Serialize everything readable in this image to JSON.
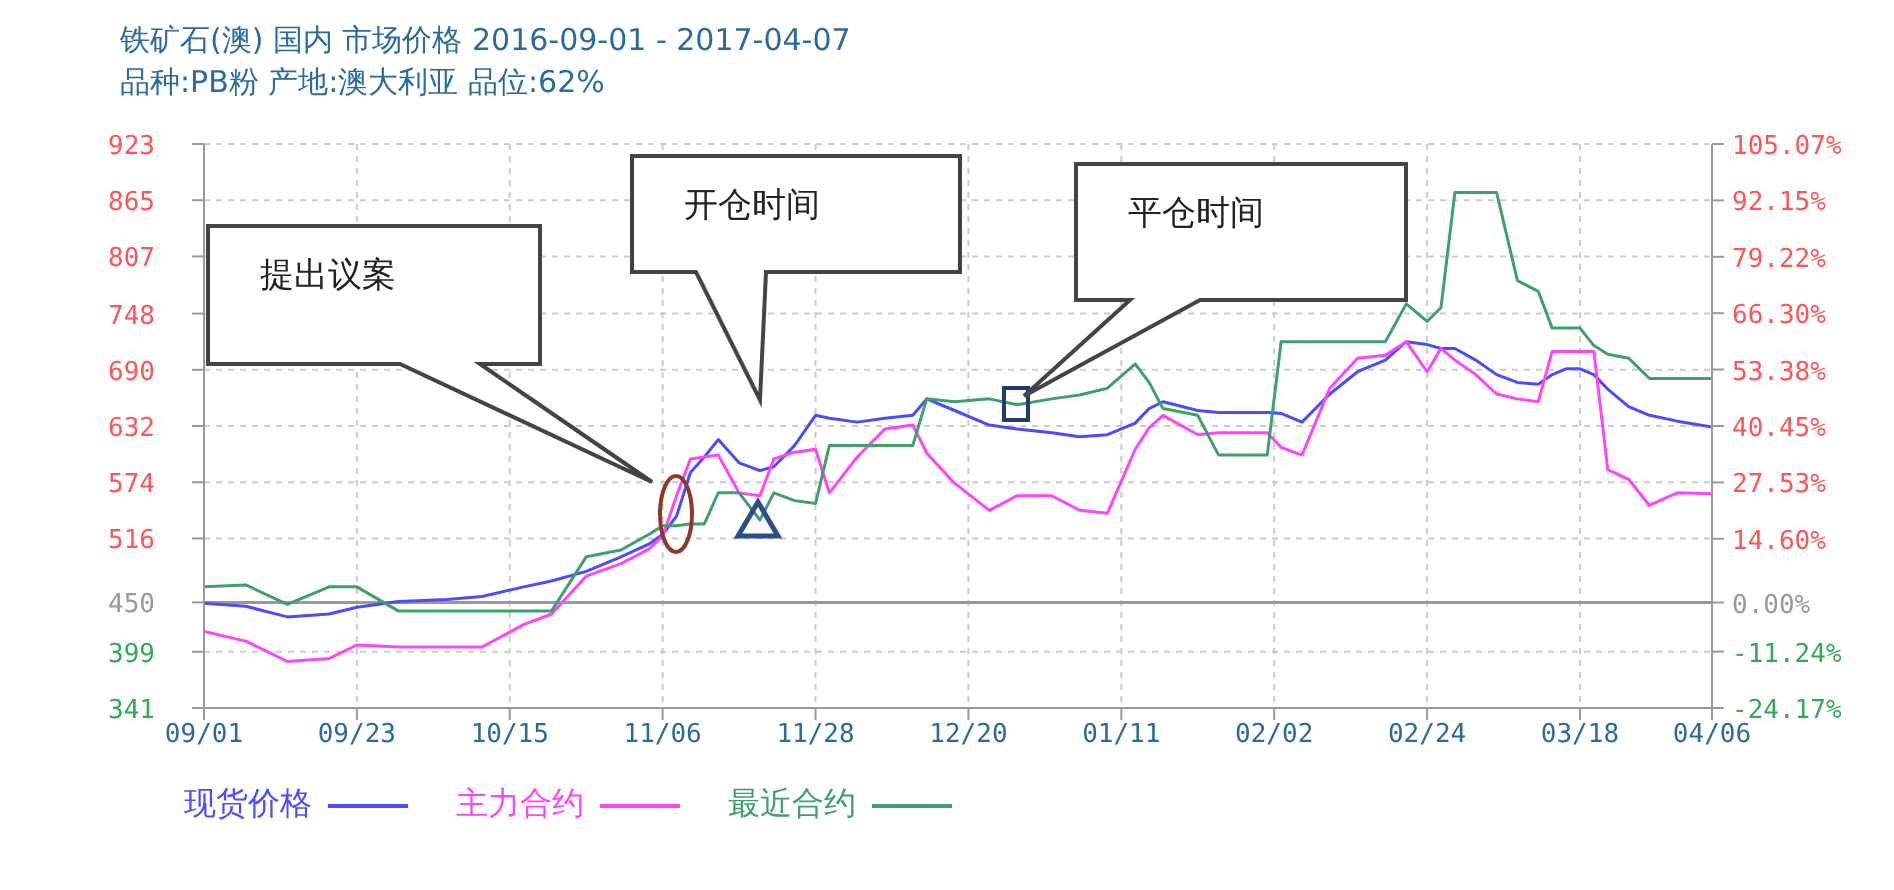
{
  "chart_data": {
    "type": "line",
    "title": "铁矿石(澳) 国内 市场价格 2016-09-01 - 2017-04-07",
    "subtitle": "品种:PB粉 产地:澳大利亚 品位:62%",
    "x": [
      "2016-09-01",
      "2016-09-07",
      "2016-09-13",
      "2016-09-19",
      "2016-09-23",
      "2016-09-29",
      "2016-10-06",
      "2016-10-11",
      "2016-10-17",
      "2016-10-21",
      "2016-10-26",
      "2016-10-31",
      "2016-11-04",
      "2016-11-06",
      "2016-11-08",
      "2016-11-10",
      "2016-11-12",
      "2016-11-14",
      "2016-11-17",
      "2016-11-20",
      "2016-11-22",
      "2016-11-25",
      "2016-11-28",
      "2016-11-30",
      "2016-12-04",
      "2016-12-08",
      "2016-12-12",
      "2016-12-14",
      "2016-12-18",
      "2016-12-23",
      "2016-12-27",
      "2017-01-01",
      "2017-01-05",
      "2017-01-09",
      "2017-01-13",
      "2017-01-15",
      "2017-01-17",
      "2017-01-22",
      "2017-01-25",
      "2017-01-29",
      "2017-02-01",
      "2017-02-03",
      "2017-02-06",
      "2017-02-10",
      "2017-02-14",
      "2017-02-18",
      "2017-02-21",
      "2017-02-24",
      "2017-02-26",
      "2017-02-28",
      "2017-03-03",
      "2017-03-06",
      "2017-03-09",
      "2017-03-12",
      "2017-03-14",
      "2017-03-16",
      "2017-03-18",
      "2017-03-20",
      "2017-03-22",
      "2017-03-25",
      "2017-03-28",
      "2017-04-01",
      "2017-04-06"
    ],
    "series": [
      {
        "name": "现货价格",
        "color": "#4b4bff",
        "values": [
          449,
          446,
          435,
          438,
          445,
          451,
          453,
          456,
          466,
          472,
          482,
          497,
          510,
          520,
          539,
          584,
          600,
          618,
          594,
          586,
          590,
          612,
          643,
          640,
          636,
          640,
          643,
          660,
          648,
          633,
          629,
          625,
          621,
          623,
          635,
          650,
          657,
          648,
          646,
          646,
          646,
          645,
          636,
          665,
          688,
          700,
          719,
          716,
          712,
          712,
          700,
          685,
          677,
          675,
          685,
          691,
          691,
          685,
          670,
          652,
          643,
          637,
          631
        ]
      },
      {
        "name": "主力合约",
        "color": "#ff44ff",
        "values": [
          420,
          410,
          389,
          392,
          406,
          404,
          404,
          404,
          427,
          438,
          477,
          490,
          505,
          518,
          560,
          598,
          600,
          602,
          563,
          560,
          598,
          605,
          608,
          563,
          600,
          629,
          633,
          604,
          573,
          545,
          560,
          560,
          545,
          542,
          608,
          630,
          643,
          623,
          625,
          625,
          625,
          610,
          602,
          671,
          702,
          705,
          719,
          688,
          712,
          700,
          685,
          665,
          660,
          657,
          709,
          709,
          709,
          709,
          587,
          577,
          550,
          563,
          562
        ]
      },
      {
        "name": "最近合约",
        "color": "#3f9f6f",
        "values": [
          466,
          468,
          448,
          466,
          466,
          441,
          441,
          441,
          441,
          441,
          497,
          504,
          520,
          529,
          529,
          531,
          531,
          563,
          563,
          535,
          563,
          555,
          552,
          612,
          612,
          612,
          612,
          660,
          657,
          660,
          654,
          660,
          664,
          671,
          696,
          677,
          650,
          643,
          602,
          602,
          602,
          719,
          719,
          719,
          719,
          719,
          758,
          740,
          754,
          873,
          873,
          873,
          782,
          771,
          733,
          733,
          733,
          715,
          706,
          702,
          681,
          681,
          681
        ]
      }
    ],
    "xlim": [
      "2016-09-01",
      "2017-04-06"
    ],
    "xticks": [
      {
        "value": "2016-09-01",
        "label": "09/01"
      },
      {
        "value": "2016-09-23",
        "label": "09/23"
      },
      {
        "value": "2016-10-15",
        "label": "10/15"
      },
      {
        "value": "2016-11-06",
        "label": "11/06"
      },
      {
        "value": "2016-11-28",
        "label": "11/28"
      },
      {
        "value": "2016-12-20",
        "label": "12/20"
      },
      {
        "value": "2017-01-11",
        "label": "01/11"
      },
      {
        "value": "2017-02-02",
        "label": "02/02"
      },
      {
        "value": "2017-02-24",
        "label": "02/24"
      },
      {
        "value": "2017-03-18",
        "label": "03/18"
      },
      {
        "value": "2017-04-06",
        "label": "04/06"
      }
    ],
    "ylim": [
      341,
      923
    ],
    "yticks": [
      341,
      399,
      450,
      516,
      574,
      632,
      690,
      748,
      807,
      865,
      923
    ],
    "y2lim": [
      -24.17,
      105.07
    ],
    "y2ticks": [
      {
        "value": -24.17,
        "label": "-24.17%"
      },
      {
        "value": -11.24,
        "label": "-11.24%"
      },
      {
        "value": 0,
        "label": "0.00%"
      },
      {
        "value": 14.6,
        "label": "14.60%"
      },
      {
        "value": 27.53,
        "label": "27.53%"
      },
      {
        "value": 40.45,
        "label": "40.45%"
      },
      {
        "value": 53.38,
        "label": "53.38%"
      },
      {
        "value": 66.3,
        "label": "66.30%"
      },
      {
        "value": 79.22,
        "label": "79.22%"
      },
      {
        "value": 92.15,
        "label": "92.15%"
      },
      {
        "value": 105.07,
        "label": "105.07%"
      }
    ],
    "ref_lines": [
      {
        "axis": "y2",
        "value": 0,
        "color": "#999999"
      }
    ],
    "annotations": [
      "提出议案",
      "开仓时间",
      "平仓时间"
    ],
    "grid": true,
    "legend": "bottom",
    "marker": "none",
    "line_style": "solid"
  }
}
